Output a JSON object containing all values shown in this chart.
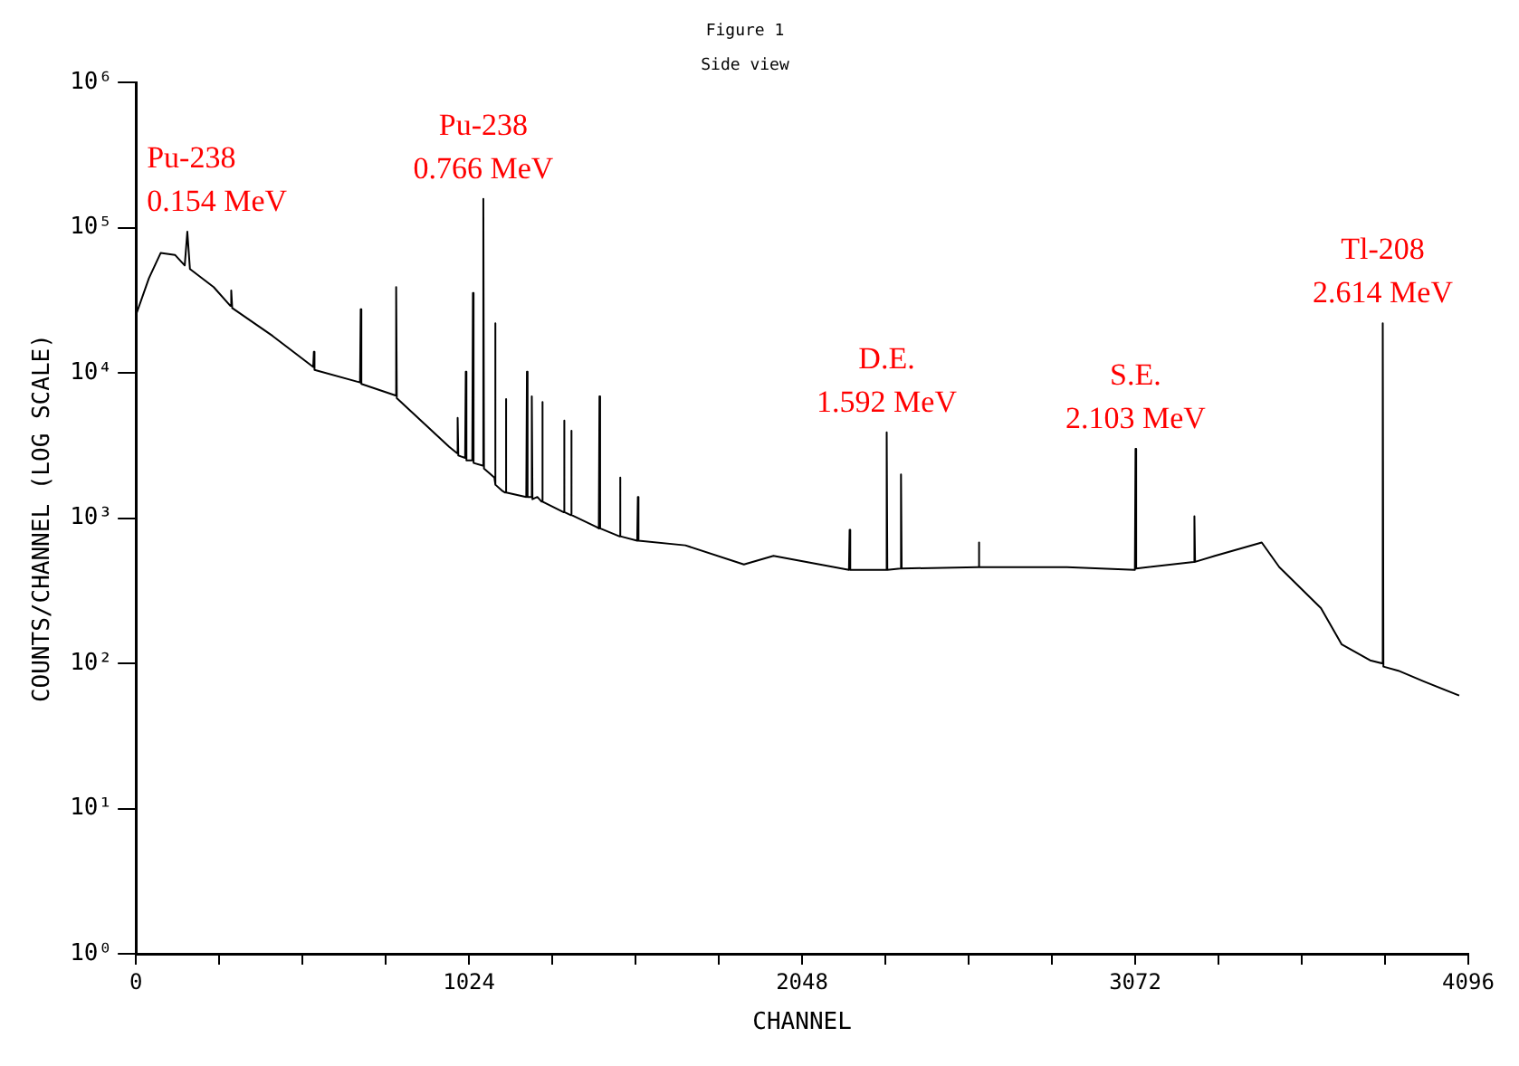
{
  "chart_data": {
    "type": "line",
    "title": "Figure 1",
    "subtitle": "Side view",
    "xlabel": "CHANNEL",
    "ylabel": "COUNTS/CHANNEL (LOG SCALE)",
    "log": "y",
    "grid": false,
    "legend": false,
    "marker": "none",
    "line_style": "solid",
    "xlim": [
      0,
      4096
    ],
    "xticks": [
      0,
      {
        "value": 256,
        "label": null
      },
      {
        "value": 512,
        "label": null
      },
      {
        "value": 768,
        "label": null
      },
      1024,
      {
        "value": 1280,
        "label": null
      },
      {
        "value": 1536,
        "label": null
      },
      {
        "value": 1792,
        "label": null
      },
      2048,
      {
        "value": 2304,
        "label": null
      },
      {
        "value": 2560,
        "label": null
      },
      {
        "value": 2816,
        "label": null
      },
      3072,
      {
        "value": 3328,
        "label": null
      },
      {
        "value": 3584,
        "label": null
      },
      {
        "value": 3840,
        "label": null
      },
      4096
    ],
    "ylim": [
      1,
      1000000
    ],
    "yticks": [
      {
        "value": 1,
        "label": "10⁰"
      },
      {
        "value": 10,
        "label": "10¹"
      },
      {
        "value": 100,
        "label": "10²"
      },
      {
        "value": 1000,
        "label": "10³"
      },
      {
        "value": 10000,
        "label": "10⁴"
      },
      {
        "value": 100000,
        "label": "10⁵"
      },
      {
        "value": 1000000,
        "label": "10⁶"
      }
    ],
    "series": [
      {
        "color": "#000000",
        "x": [
          0,
          40,
          76,
          120,
          150,
          158,
          166,
          239,
          290,
          293,
          296,
          420,
          545,
          547,
          549,
          689,
          691,
          693,
          798,
          800,
          802,
          963,
          987,
          989,
          991,
          1012,
          1014,
          1016,
          1034,
          1036,
          1038,
          1066,
          1068,
          1070,
          1102,
          1104,
          1106,
          1125,
          1135,
          1137,
          1139,
          1200,
          1202,
          1204,
          1215,
          1217,
          1219,
          1234,
          1247,
          1249,
          1251,
          1314,
          1316,
          1318,
          1336,
          1338,
          1340,
          1416,
          1423,
          1425,
          1427,
          1486,
          1488,
          1490,
          1541,
          1543,
          1545,
          1689,
          1869,
          1960,
          2192,
          2194,
          2196,
          2306,
          2308,
          2310,
          2350,
          2352,
          2354,
          2589,
          2591,
          2593,
          2862,
          3071,
          3073,
          3075,
          3252,
          3254,
          3256,
          3317,
          3461,
          3515,
          3643,
          3707,
          3794,
          3831,
          3833,
          3835,
          3881,
          3960,
          4068
        ],
        "values": [
          25000,
          45000,
          67000,
          65000,
          55000,
          94000,
          52000,
          39000,
          29000,
          37000,
          28000,
          18000,
          11000,
          14000,
          10500,
          8600,
          27500,
          8400,
          7000,
          39000,
          6700,
          3100,
          2800,
          4900,
          2700,
          2600,
          10200,
          2500,
          2500,
          35500,
          2400,
          2300,
          158000,
          2200,
          1900,
          22000,
          1700,
          1550,
          1500,
          6600,
          1500,
          1400,
          10200,
          1400,
          1400,
          6900,
          1350,
          1400,
          1300,
          6300,
          1300,
          1100,
          4700,
          1100,
          1050,
          4000,
          1050,
          870,
          850,
          6900,
          850,
          750,
          1900,
          750,
          700,
          1400,
          700,
          650,
          480,
          550,
          440,
          830,
          440,
          440,
          3900,
          440,
          450,
          2000,
          450,
          460,
          680,
          460,
          460,
          440,
          3000,
          450,
          500,
          1030,
          500,
          550,
          680,
          460,
          240,
          135,
          105,
          100,
          22000,
          95,
          89,
          75,
          60
        ]
      }
    ],
    "annotations": [
      {
        "text": "Pu-238",
        "x": 158,
        "y": 94000
      },
      {
        "text": "0.154 MeV",
        "x": 158,
        "y": 94000
      },
      {
        "text": "Pu-238",
        "x": 1068,
        "y": 158000
      },
      {
        "text": "0.766 MeV",
        "x": 1068,
        "y": 158000
      },
      {
        "text": "D.E.",
        "x": 2308,
        "y": 3900
      },
      {
        "text": "1.592 MeV",
        "x": 2308,
        "y": 3900
      },
      {
        "text": "S.E.",
        "x": 3073,
        "y": 3000
      },
      {
        "text": "2.103 MeV",
        "x": 3073,
        "y": 3000
      },
      {
        "text": "Tl-208",
        "x": 3833,
        "y": 22000
      },
      {
        "text": "2.614 MeV",
        "x": 3833,
        "y": 22000
      }
    ]
  }
}
